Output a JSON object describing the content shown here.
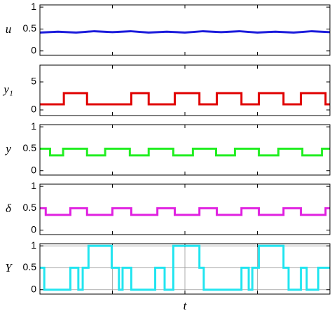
{
  "chart_data": [
    {
      "type": "line",
      "y_label": "u",
      "ylim": [
        -0.1,
        1.05
      ],
      "yticks": [
        0,
        0.5,
        1
      ],
      "xlim": [
        0,
        4
      ],
      "xticks": [
        1,
        2,
        3
      ],
      "grid": false,
      "series": [
        {
          "color": "#1a1adb",
          "x": [
            0,
            0.25,
            0.5,
            0.75,
            1,
            1.25,
            1.5,
            1.75,
            2,
            2.25,
            2.5,
            2.75,
            3,
            3.25,
            3.5,
            3.75,
            4
          ],
          "values": [
            0.42,
            0.44,
            0.42,
            0.45,
            0.43,
            0.45,
            0.42,
            0.44,
            0.42,
            0.45,
            0.43,
            0.45,
            0.42,
            0.44,
            0.42,
            0.45,
            0.43
          ]
        }
      ]
    },
    {
      "type": "line",
      "y_label": "y₁",
      "ylim": [
        -1,
        8
      ],
      "yticks": [
        0,
        5
      ],
      "xlim": [
        0,
        4
      ],
      "xticks": [
        1,
        2,
        3
      ],
      "grid": false,
      "series": [
        {
          "color": "#e00000",
          "x": [
            0,
            0.33,
            0.33,
            0.65,
            0.65,
            1.26,
            1.26,
            1.5,
            1.5,
            1.86,
            1.86,
            2.2,
            2.2,
            2.44,
            2.44,
            2.78,
            2.78,
            3.02,
            3.02,
            3.36,
            3.36,
            3.6,
            3.6,
            3.94,
            3.94,
            4
          ],
          "values": [
            1,
            1,
            3,
            3,
            1,
            1,
            3,
            3,
            1,
            1,
            3,
            3,
            1,
            1,
            3,
            3,
            1,
            1,
            3,
            3,
            1,
            1,
            3,
            3,
            1,
            1
          ]
        }
      ]
    },
    {
      "type": "line",
      "y_label": "y",
      "ylim": [
        -0.1,
        1.05
      ],
      "yticks": [
        0,
        0.5,
        1
      ],
      "xlim": [
        0,
        4
      ],
      "xticks": [
        1,
        2,
        3
      ],
      "grid": false,
      "series": [
        {
          "color": "#22ee22",
          "x": [
            0,
            0.14,
            0.14,
            0.32,
            0.32,
            0.65,
            0.65,
            0.9,
            0.9,
            1.24,
            1.24,
            1.5,
            1.5,
            1.84,
            1.84,
            2.11,
            2.11,
            2.43,
            2.43,
            2.69,
            2.69,
            3.02,
            3.02,
            3.29,
            3.29,
            3.62,
            3.62,
            3.89,
            3.89,
            4
          ],
          "values": [
            0.5,
            0.5,
            0.35,
            0.35,
            0.5,
            0.5,
            0.35,
            0.35,
            0.5,
            0.5,
            0.35,
            0.35,
            0.5,
            0.5,
            0.35,
            0.35,
            0.5,
            0.5,
            0.35,
            0.35,
            0.5,
            0.5,
            0.35,
            0.35,
            0.5,
            0.5,
            0.35,
            0.35,
            0.5,
            0.5
          ]
        }
      ]
    },
    {
      "type": "line",
      "y_label": "δ",
      "ylim": [
        -0.1,
        1.05
      ],
      "yticks": [
        0,
        0.5,
        1
      ],
      "xlim": [
        0,
        4
      ],
      "xticks": [
        1,
        2,
        3
      ],
      "grid": false,
      "series": [
        {
          "color": "#e020e0",
          "x": [
            0,
            0.08,
            0.08,
            0.42,
            0.42,
            0.65,
            0.65,
            1.0,
            1.0,
            1.26,
            1.26,
            1.62,
            1.62,
            1.86,
            1.86,
            2.2,
            2.2,
            2.44,
            2.44,
            2.78,
            2.78,
            3.02,
            3.02,
            3.36,
            3.36,
            3.6,
            3.6,
            3.94,
            3.94,
            4
          ],
          "values": [
            0.5,
            0.5,
            0.35,
            0.35,
            0.5,
            0.5,
            0.35,
            0.35,
            0.5,
            0.5,
            0.35,
            0.35,
            0.5,
            0.5,
            0.35,
            0.35,
            0.5,
            0.5,
            0.35,
            0.35,
            0.5,
            0.5,
            0.35,
            0.35,
            0.5,
            0.5,
            0.35,
            0.35,
            0.5,
            0.5
          ]
        }
      ]
    },
    {
      "type": "line",
      "y_label": "Y",
      "x_label": "t",
      "ylim": [
        -0.1,
        1.05
      ],
      "yticks": [
        0,
        0.5,
        1
      ],
      "xlim": [
        0,
        4
      ],
      "xticks": [
        1,
        2,
        3
      ],
      "grid": true,
      "series": [
        {
          "color": "#22e5f0",
          "x": [
            0,
            0.06,
            0.06,
            0.42,
            0.42,
            0.53,
            0.53,
            0.59,
            0.59,
            0.67,
            0.67,
            0.99,
            0.99,
            1.09,
            1.09,
            1.14,
            1.14,
            1.26,
            1.26,
            1.59,
            1.59,
            1.72,
            1.72,
            1.84,
            1.84,
            2.2,
            2.2,
            2.26,
            2.26,
            2.78,
            2.78,
            2.88,
            2.88,
            2.93,
            2.93,
            3.02,
            3.02,
            3.36,
            3.36,
            3.43,
            3.43,
            3.6,
            3.6,
            3.68,
            3.68,
            3.84,
            3.84,
            4
          ],
          "values": [
            0.5,
            0.5,
            0,
            0,
            0.5,
            0.5,
            0,
            0,
            0.5,
            0.5,
            1,
            1,
            0.5,
            0.5,
            0,
            0,
            0.5,
            0.5,
            0,
            0,
            0.5,
            0.5,
            0,
            0,
            1,
            1,
            0.5,
            0.5,
            0,
            0,
            0.5,
            0.5,
            0,
            0,
            0.5,
            0.5,
            1,
            1,
            0.5,
            0.5,
            0,
            0,
            0.5,
            0.5,
            0,
            0,
            0.5,
            0.5
          ]
        }
      ]
    }
  ]
}
